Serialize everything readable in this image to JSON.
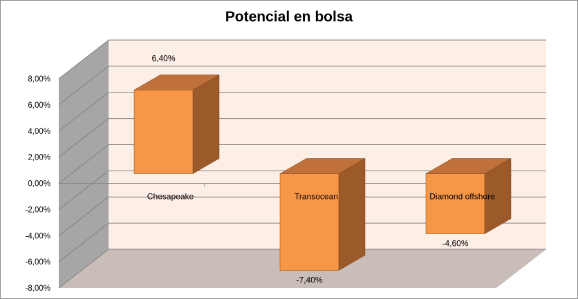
{
  "chart_data": {
    "type": "bar",
    "title": "Potencial en bolsa",
    "categories": [
      "Chesapeake",
      "Transocean",
      "Diamond offshore"
    ],
    "values": [
      6.4,
      -7.4,
      -4.6
    ],
    "data_labels": [
      "6,40%",
      "-7,40%",
      "-4,60%"
    ],
    "ylim": [
      -8,
      8
    ],
    "yticks": [
      8,
      6,
      4,
      2,
      0,
      -2,
      -4,
      -6,
      -8
    ],
    "ytick_labels": [
      "8,00%",
      "6,00%",
      "4,00%",
      "2,00%",
      "0,00%",
      "-2,00%",
      "-4,00%",
      "-6,00%",
      "-8,00%"
    ],
    "grid": true,
    "legend": "none",
    "style": "3d-column",
    "colors": {
      "bar_front": "#f79646",
      "bar_top": "#c0703a",
      "bar_side": "#9c5a2a",
      "back_wall": "#fdeee6",
      "side_wall": "#a6a6a6",
      "floor": "#c9bdb8",
      "gridline": "#7f7f7f"
    }
  }
}
